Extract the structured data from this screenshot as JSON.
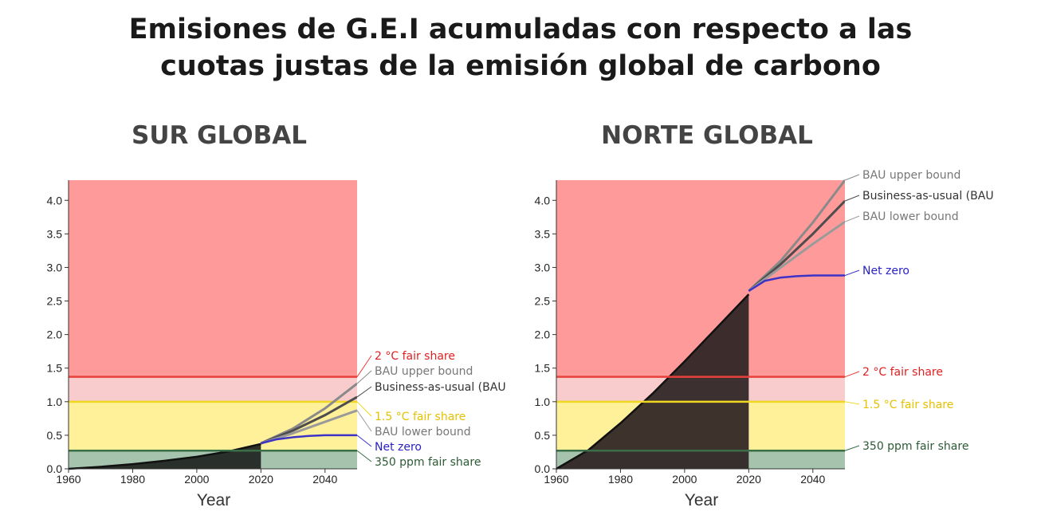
{
  "title_lines": [
    "Emisiones de G.E.I acumuladas con respecto a las",
    "cuotas justas de la emisión global de carbono"
  ],
  "chart_data": [
    {
      "type": "area",
      "title": "SUR GLOBAL",
      "xlabel": "Year",
      "ylabel": "",
      "xlim": [
        1960,
        2050
      ],
      "ylim": [
        0,
        4.3
      ],
      "xticks": [
        1960,
        1980,
        2000,
        2020,
        2040
      ],
      "yticks": [
        "0.0",
        "0.5",
        "1.0",
        "1.5",
        "2.0",
        "2.5",
        "3.0",
        "3.5",
        "4.0"
      ],
      "bands": [
        {
          "from": 1.37,
          "to": 4.3,
          "color": "#ff9a9a"
        },
        {
          "from": 1.0,
          "to": 1.37,
          "color": "#f8cccc"
        },
        {
          "from": 0.27,
          "to": 1.0,
          "color": "#fff09a"
        },
        {
          "from": 0,
          "to": 0.27,
          "color": "#a6c4ad"
        }
      ],
      "historical": {
        "color": "#1f2420",
        "x": [
          1960,
          1970,
          1980,
          1990,
          2000,
          2010,
          2020
        ],
        "y": [
          0,
          0.03,
          0.07,
          0.12,
          0.18,
          0.26,
          0.37
        ]
      },
      "series": [
        {
          "name": "BAU upper bound",
          "color": "#8a8a8a",
          "x": [
            2020,
            2030,
            2040,
            2050
          ],
          "y": [
            0.38,
            0.6,
            0.9,
            1.27
          ]
        },
        {
          "name": "Business-as-usual (BAU",
          "color": "#4d4d4d",
          "x": [
            2020,
            2030,
            2040,
            2050
          ],
          "y": [
            0.38,
            0.57,
            0.8,
            1.07
          ]
        },
        {
          "name": "BAU lower bound",
          "color": "#9a9a9a",
          "x": [
            2020,
            2030,
            2040,
            2050
          ],
          "y": [
            0.38,
            0.53,
            0.7,
            0.87
          ]
        },
        {
          "name": "Net zero",
          "color": "#3c32c8",
          "x": [
            2020,
            2025,
            2030,
            2035,
            2040,
            2050
          ],
          "y": [
            0.38,
            0.44,
            0.47,
            0.49,
            0.5,
            0.5
          ]
        }
      ],
      "thresholds": [
        {
          "name": "2 °C fair share",
          "value": 1.37,
          "color": "#e8403a",
          "label_color": "#e02020"
        },
        {
          "name": "1.5 °C fair share",
          "value": 1.0,
          "color": "#f0d820",
          "label_color": "#e6c100"
        },
        {
          "name": "350 ppm fair share",
          "value": 0.27,
          "color": "#3b6e46",
          "label_color": "#2c5a34"
        }
      ]
    },
    {
      "type": "area",
      "title": "NORTE GLOBAL",
      "xlabel": "Year",
      "ylabel": "",
      "xlim": [
        1960,
        2050
      ],
      "ylim": [
        0,
        4.3
      ],
      "xticks": [
        1960,
        1980,
        2000,
        2020,
        2040
      ],
      "yticks": [
        "0.0",
        "0.5",
        "1.0",
        "1.5",
        "2.0",
        "2.5",
        "3.0",
        "3.5",
        "4.0"
      ],
      "bands": [
        {
          "from": 1.37,
          "to": 4.3,
          "color": "#ff9a9a"
        },
        {
          "from": 1.0,
          "to": 1.37,
          "color": "#f8cccc"
        },
        {
          "from": 0.27,
          "to": 1.0,
          "color": "#fff09a"
        },
        {
          "from": 0,
          "to": 0.27,
          "color": "#a6c4ad"
        }
      ],
      "historical": {
        "color": "#2e2323",
        "x": [
          1960,
          1970,
          1980,
          1990,
          2000,
          2010,
          2020
        ],
        "y": [
          0,
          0.28,
          0.68,
          1.12,
          1.6,
          2.1,
          2.6
        ]
      },
      "series": [
        {
          "name": "BAU upper bound",
          "color": "#8a8a8a",
          "x": [
            2020,
            2030,
            2040,
            2050
          ],
          "y": [
            2.65,
            3.1,
            3.67,
            4.3
          ]
        },
        {
          "name": "Business-as-usual (BAU",
          "color": "#4d4d4d",
          "x": [
            2020,
            2030,
            2040,
            2050
          ],
          "y": [
            2.65,
            3.05,
            3.5,
            3.99
          ]
        },
        {
          "name": "BAU lower bound",
          "color": "#9a9a9a",
          "x": [
            2020,
            2030,
            2040,
            2050
          ],
          "y": [
            2.65,
            3.0,
            3.35,
            3.68
          ]
        },
        {
          "name": "Net zero",
          "color": "#3c32c8",
          "x": [
            2020,
            2025,
            2030,
            2035,
            2040,
            2050
          ],
          "y": [
            2.65,
            2.8,
            2.85,
            2.87,
            2.88,
            2.88
          ]
        }
      ],
      "thresholds": [
        {
          "name": "2 °C fair share",
          "value": 1.37,
          "color": "#e8403a",
          "label_color": "#e02020"
        },
        {
          "name": "1.5 °C fair share",
          "value": 1.0,
          "color": "#f0d820",
          "label_color": "#e6c100"
        },
        {
          "name": "350 ppm fair share",
          "value": 0.27,
          "color": "#3b6e46",
          "label_color": "#2c5a34"
        }
      ]
    }
  ]
}
